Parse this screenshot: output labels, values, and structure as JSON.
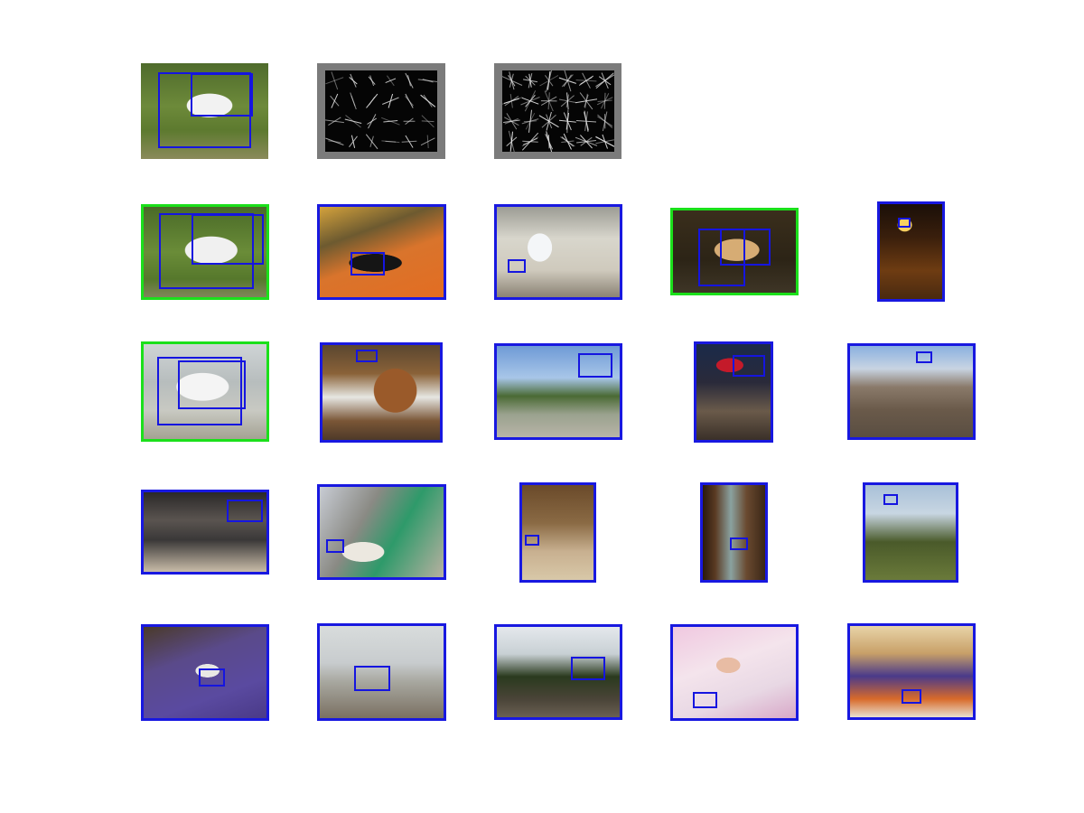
{
  "colors": {
    "positive_frame": "#1be01b",
    "negative_frame": "#1818e0",
    "box": "#1515e0",
    "hog_background": "#7b7b7b",
    "hog_panel": "#050505",
    "hog_stroke": "#e8e8e8"
  },
  "panels": {
    "query": {
      "content": "white-horse-photo",
      "box_count": 2
    },
    "hog_templates": [
      {
        "content": "hog-template-sparse"
      },
      {
        "content": "hog-template-dense"
      }
    ]
  },
  "detections": [
    {
      "rank": 1,
      "content": "white-horse-field",
      "frame": "positive"
    },
    {
      "rank": 2,
      "content": "black-white-cat-on-orange-couch",
      "frame": "negative"
    },
    {
      "rank": 3,
      "content": "white-bathroom-interior",
      "frame": "negative"
    },
    {
      "rank": 4,
      "content": "palomino-horse-dark-background",
      "frame": "positive"
    },
    {
      "rank": 5,
      "content": "candle-flame-dark",
      "frame": "negative"
    },
    {
      "rank": 6,
      "content": "white-horse-paddock",
      "frame": "positive"
    },
    {
      "rank": 7,
      "content": "highland-cow-snow",
      "frame": "negative"
    },
    {
      "rank": 8,
      "content": "park-trees-blue-sky",
      "frame": "negative"
    },
    {
      "rank": 9,
      "content": "cat-with-santa-hat",
      "frame": "negative"
    },
    {
      "rank": 10,
      "content": "mountain-prayer-flags",
      "frame": "negative"
    },
    {
      "rank": 11,
      "content": "office-worker-at-desk",
      "frame": "negative"
    },
    {
      "rank": 12,
      "content": "man-with-dog-in-car",
      "frame": "negative"
    },
    {
      "rank": 13,
      "content": "bookshelf-with-clear-chair",
      "frame": "negative"
    },
    {
      "rank": 14,
      "content": "glass-bottle-close-up",
      "frame": "negative"
    },
    {
      "rank": 15,
      "content": "heron-in-pine-tree",
      "frame": "negative"
    },
    {
      "rank": 16,
      "content": "table-with-dishes-purple-cloth",
      "frame": "negative"
    },
    {
      "rank": 17,
      "content": "people-cheering-mountains",
      "frame": "negative"
    },
    {
      "rank": 18,
      "content": "railway-tracks-trees",
      "frame": "negative"
    },
    {
      "rank": 19,
      "content": "newborn-baby-pink-blanket",
      "frame": "negative"
    },
    {
      "rank": 20,
      "content": "family-at-restaurant",
      "frame": "negative"
    }
  ]
}
